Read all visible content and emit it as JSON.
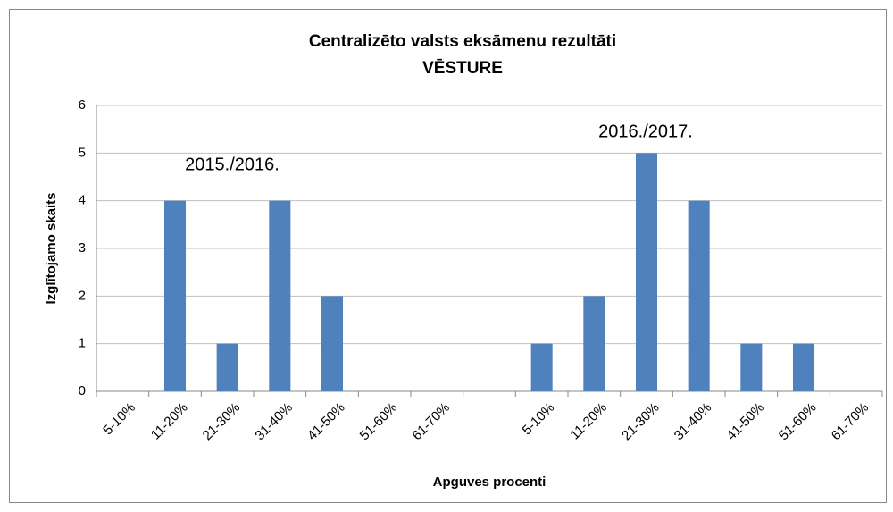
{
  "chart_data": {
    "type": "bar",
    "title": "Centralizēto valsts eksāmenu rezultāti",
    "subtitle": "VĒSTURE",
    "xlabel": "Apguves procenti",
    "ylabel": "Izglītojamo skaits",
    "categories": [
      "5-10%",
      "11-20%",
      "21-30%",
      "31-40%",
      "41-50%",
      "51-60%",
      "61-70%",
      null,
      "5-10%",
      "11-20%",
      "21-30%",
      "31-40%",
      "41-50%",
      "51-60%",
      "61-70%"
    ],
    "values": [
      0,
      4,
      1,
      4,
      2,
      0,
      0,
      null,
      1,
      2,
      5,
      4,
      1,
      1,
      0
    ],
    "color": "#4f81bd",
    "ylim": [
      0,
      6
    ],
    "yticks": [
      0,
      1,
      2,
      3,
      4,
      5,
      6
    ],
    "grid": true,
    "annotations": [
      "2015./2016.",
      "2016./2017."
    ]
  }
}
